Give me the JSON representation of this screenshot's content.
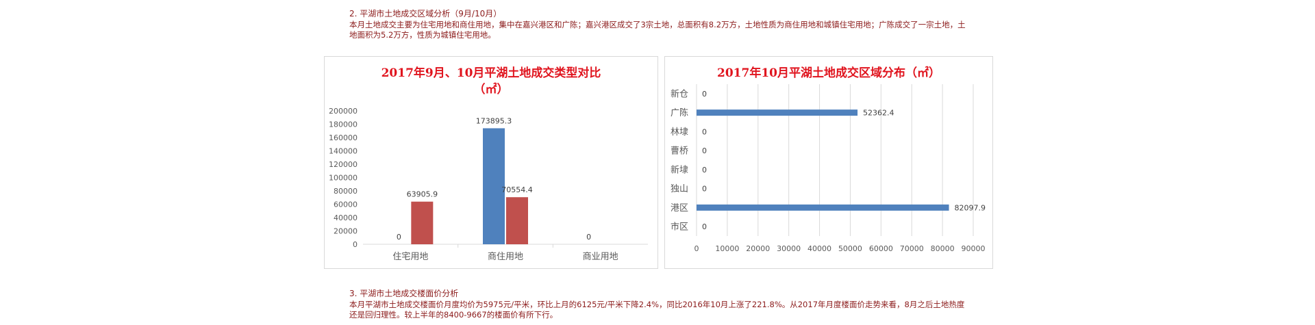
{
  "section2": {
    "heading": "2. 平湖市土地成交区域分析（9月/10月）",
    "body": "本月土地成交主要为住宅用地和商住用地，集中在嘉兴港区和广陈；嘉兴港区成交了3宗土地，总面积有8.2万方，土地性质为商住用地和城镇住宅用地；广陈成交了一宗土地，土地面积为5.2万方，性质为城镇住宅用地。"
  },
  "section3": {
    "heading": "3. 平湖市土地成交楼面价分析",
    "body": "本月平湖市土地成交楼面价月度均价为5975元/平米，环比上月的6125元/平米下降2.4%，同比2016年10月上涨了221.8%。从2017年月度楼面价走势来看，8月之后土地热度还是回归理性。较上半年的8400-9667的楼面价有所下行。"
  },
  "colors": {
    "blue": "#4f81bd",
    "red": "#c0504d",
    "title_red": "#e0141e",
    "grid": "#d9d9d9",
    "axis_text": "#595959"
  },
  "chart_data": [
    {
      "type": "bar",
      "title_line1": "2017年9月、10月平湖土地成交类型对比",
      "title_line2": "（㎡）",
      "categories": [
        "住宅用地",
        "商住用地",
        "商业用地"
      ],
      "series": [
        {
          "color": "#4f81bd",
          "values": [
            0,
            173895.3,
            0
          ],
          "labels": [
            "0",
            "173895.3",
            "0"
          ],
          "show_label": [
            true,
            true,
            true
          ]
        },
        {
          "color": "#c0504d",
          "values": [
            63905.9,
            70554.4,
            0
          ],
          "labels": [
            "63905.9",
            "70554.4",
            ""
          ],
          "show_label": [
            true,
            true,
            false
          ]
        }
      ],
      "ylim": [
        0,
        200000
      ],
      "yticks": [
        0,
        20000,
        40000,
        60000,
        80000,
        100000,
        120000,
        140000,
        160000,
        180000,
        200000
      ],
      "grid": false
    },
    {
      "type": "bar",
      "orientation": "horizontal",
      "title": "2017年10月平湖土地成交区域分布（㎡）",
      "categories": [
        "新仓",
        "广陈",
        "林埭",
        "曹桥",
        "新埭",
        "独山",
        "港区",
        "市区"
      ],
      "values": [
        0,
        52362.4,
        0,
        0,
        0,
        0,
        82097.9,
        0
      ],
      "labels": [
        "0",
        "52362.4",
        "0",
        "0",
        "0",
        "0",
        "82097.9",
        "0"
      ],
      "color": "#4f81bd",
      "xlim": [
        0,
        90000
      ],
      "xticks": [
        0,
        10000,
        20000,
        30000,
        40000,
        50000,
        60000,
        70000,
        80000,
        90000
      ],
      "grid": true
    }
  ]
}
